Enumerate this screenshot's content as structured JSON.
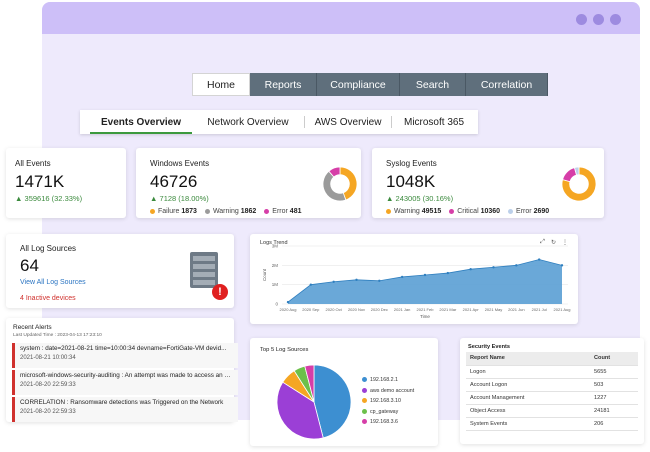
{
  "nav": {
    "items": [
      "Home",
      "Reports",
      "Compliance",
      "Search",
      "Correlation"
    ],
    "active": "Home"
  },
  "subtabs": [
    "Events Overview",
    "Network Overview",
    "AWS Overview",
    "Microsoft 365"
  ],
  "all_events": {
    "label": "All Events",
    "value": "1471K",
    "delta": "359616 (32.33%)"
  },
  "windows_events": {
    "label": "Windows Events",
    "value": "46726",
    "delta": "7128 (18.00%)",
    "legend": [
      {
        "name": "Failure",
        "value": "1873",
        "color": "#f5a623"
      },
      {
        "name": "Warning",
        "value": "1862",
        "color": "#9b9b9b"
      },
      {
        "name": "Error",
        "value": "481",
        "color": "#d63ea8"
      }
    ]
  },
  "syslog_events": {
    "label": "Syslog Events",
    "value": "1048K",
    "delta": "243005 (30.16%)",
    "legend": [
      {
        "name": "Warning",
        "value": "49515",
        "color": "#f5a623"
      },
      {
        "name": "Critical",
        "value": "10360",
        "color": "#d63ea8"
      },
      {
        "name": "Error",
        "value": "2690",
        "color": "#bcd0ea"
      }
    ]
  },
  "log_sources": {
    "label": "All Log Sources",
    "value": "64",
    "link": "View All Log Sources",
    "inactive": "4 Inactive devices",
    "badge": "!"
  },
  "trend": {
    "title": "Logs Trend",
    "xlabel": "Time",
    "ylabel": "Count",
    "ticks_y": [
      "3M",
      "2M",
      "1M",
      "0"
    ],
    "ticks_x": [
      "2020 Aug",
      "2020 Sep",
      "2020 Oct",
      "2020 Nov",
      "2020 Dec",
      "2021 Jan",
      "2021 Feb",
      "2021 Mar",
      "2021 Apr",
      "2021 May",
      "2021 Jun",
      "2021 Jul",
      "2021 Aug"
    ]
  },
  "alerts": {
    "title": "Recent Alerts",
    "updated": "Last Updated Time : 2023-04-13 17:23:10",
    "items": [
      {
        "msg": "system : date=2021-08-21 time=10:00:34 devname=FortiGate-VM devid...",
        "time": "2021-08-21 10:00:34"
      },
      {
        "msg": "microsoft-windows-security-auditing : An attempt was made to access an o...",
        "time": "2021-08-20 22:59:33"
      },
      {
        "msg": "CORRELATION : Ransomware detections was Triggered on the Network",
        "time": "2021-08-20 22:59:33"
      }
    ]
  },
  "top_sources": {
    "title": "Top 5 Log Sources",
    "legend": [
      {
        "name": "192.168.2.1",
        "color": "#3d8fd1"
      },
      {
        "name": "aws demo account",
        "color": "#9b3fd6"
      },
      {
        "name": "192.168.3.10",
        "color": "#f5a623"
      },
      {
        "name": "cp_gateway",
        "color": "#6cc04a"
      },
      {
        "name": "192.168.3.6",
        "color": "#d63ea8"
      }
    ]
  },
  "security_events": {
    "title": "Security Events",
    "headers": [
      "Report Name",
      "Count"
    ],
    "rows": [
      [
        "Logon",
        "5655"
      ],
      [
        "Account Logon",
        "503"
      ],
      [
        "Account Management",
        "1227"
      ],
      [
        "Object Access",
        "24181"
      ],
      [
        "System Events",
        "206"
      ]
    ]
  },
  "chart_data": [
    {
      "type": "area",
      "title": "Logs Trend",
      "xlabel": "Time",
      "ylabel": "Count",
      "x": [
        "2020 Aug",
        "2020 Sep",
        "2020 Oct",
        "2020 Nov",
        "2020 Dec",
        "2021 Jan",
        "2021 Feb",
        "2021 Mar",
        "2021 Apr",
        "2021 May",
        "2021 Jun",
        "2021 Jul",
        "2021 Aug"
      ],
      "values": [
        100000,
        1000000,
        1150000,
        1250000,
        1200000,
        1400000,
        1500000,
        1600000,
        1800000,
        1900000,
        2000000,
        2300000,
        2000000
      ],
      "ylim": [
        0,
        3000000
      ],
      "grid": true,
      "color": "#5a9fd4"
    },
    {
      "type": "pie",
      "title": "Top 5 Log Sources",
      "categories": [
        "192.168.2.1",
        "aws demo account",
        "192.168.3.10",
        "cp_gateway",
        "192.168.3.6"
      ],
      "values": [
        46,
        38,
        7,
        5,
        4
      ],
      "legend": "right"
    },
    {
      "type": "pie",
      "title": "Windows Events",
      "categories": [
        "Failure",
        "Warning",
        "Error"
      ],
      "values": [
        1873,
        1862,
        481
      ]
    },
    {
      "type": "pie",
      "title": "Syslog Events",
      "categories": [
        "Warning",
        "Critical",
        "Error"
      ],
      "values": [
        49515,
        10360,
        2690
      ]
    }
  ]
}
